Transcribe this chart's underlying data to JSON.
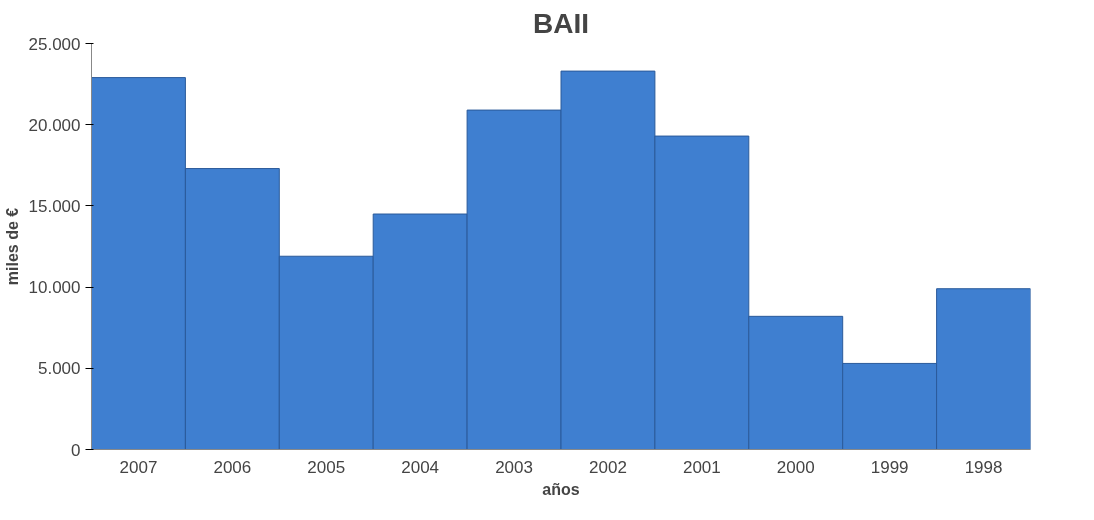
{
  "chart_data": {
    "type": "bar",
    "title": "BAII",
    "xlabel": "años",
    "ylabel": "miles de €",
    "categories": [
      "2007",
      "2006",
      "2005",
      "2004",
      "2003",
      "2002",
      "2001",
      "2000",
      "1999",
      "1998"
    ],
    "values": [
      22900,
      17300,
      11900,
      14500,
      20900,
      23300,
      19300,
      8200,
      5300,
      9900
    ],
    "color": "#3f7fd0",
    "ylim": [
      0,
      25000
    ],
    "yticks": [
      {
        "value": 0,
        "label": "0"
      },
      {
        "value": 5000,
        "label": "5.000"
      },
      {
        "value": 10000,
        "label": "10.000"
      },
      {
        "value": 15000,
        "label": "15.000"
      },
      {
        "value": 20000,
        "label": "20.000"
      },
      {
        "value": 25000,
        "label": "25.000"
      }
    ],
    "grid": false
  }
}
